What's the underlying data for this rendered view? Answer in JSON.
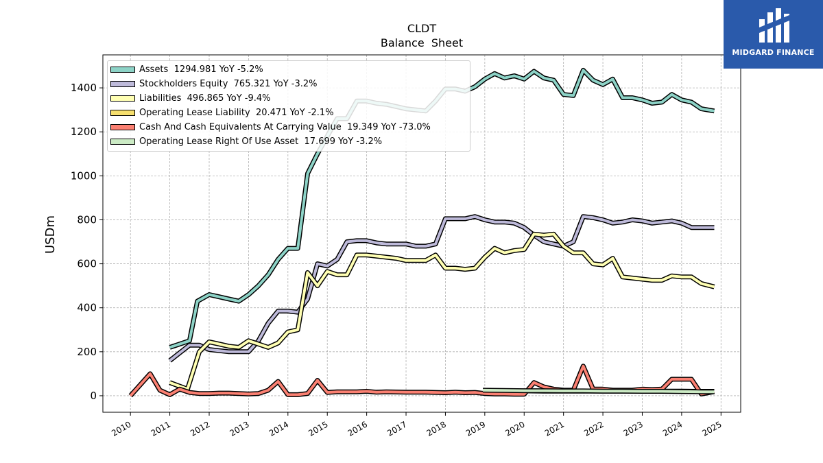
{
  "brand": {
    "name": "MIDGARD FINANCE",
    "bg_color": "#2a5aab"
  },
  "chart_data": {
    "type": "line",
    "title": "CLDT",
    "subtitle": "Balance  Sheet",
    "ylabel": "USDm",
    "xlabel": "",
    "xlim": [
      2009.3,
      2025.5
    ],
    "ylim": [
      -75,
      1550
    ],
    "x_ticks": [
      "2010",
      "2011",
      "2012",
      "2013",
      "2014",
      "2015",
      "2016",
      "2017",
      "2018",
      "2019",
      "2020",
      "2021",
      "2022",
      "2023",
      "2024",
      "2025"
    ],
    "y_ticks": [
      "0",
      "200",
      "400",
      "600",
      "800",
      "1000",
      "1200",
      "1400"
    ],
    "grid": true,
    "legend_position": "top-left",
    "series": [
      {
        "name": "Assets",
        "legend": "Assets  1294.981 YoY -5.2%",
        "color": "#8dd3c7",
        "x": [
          2011.0,
          2011.5,
          2011.7,
          2012.0,
          2012.25,
          2012.5,
          2012.75,
          2013.0,
          2013.25,
          2013.5,
          2013.75,
          2014.0,
          2014.25,
          2014.5,
          2014.75,
          2015.0,
          2015.25,
          2015.5,
          2015.75,
          2016.0,
          2016.25,
          2016.5,
          2016.75,
          2017.0,
          2017.25,
          2017.5,
          2017.75,
          2018.0,
          2018.25,
          2018.5,
          2018.75,
          2019.0,
          2019.25,
          2019.5,
          2019.75,
          2020.0,
          2020.25,
          2020.5,
          2020.75,
          2021.0,
          2021.25,
          2021.5,
          2021.75,
          2022.0,
          2022.25,
          2022.5,
          2022.75,
          2023.0,
          2023.25,
          2023.5,
          2023.75,
          2024.0,
          2024.25,
          2024.5,
          2024.83
        ],
        "y": [
          220,
          250,
          430,
          460,
          450,
          440,
          430,
          460,
          500,
          550,
          620,
          670,
          670,
          1010,
          1100,
          1180,
          1260,
          1260,
          1340,
          1340,
          1330,
          1325,
          1315,
          1305,
          1300,
          1295,
          1340,
          1395,
          1395,
          1385,
          1405,
          1440,
          1465,
          1445,
          1455,
          1440,
          1475,
          1445,
          1435,
          1370,
          1365,
          1480,
          1435,
          1415,
          1440,
          1355,
          1355,
          1345,
          1330,
          1335,
          1370,
          1345,
          1335,
          1305,
          1295
        ]
      },
      {
        "name": "Stockholders Equity",
        "legend": "Stockholders Equity  765.321 YoY -3.2%",
        "color": "#bebada",
        "x": [
          2011.0,
          2011.5,
          2011.75,
          2012.0,
          2012.25,
          2012.5,
          2012.75,
          2013.0,
          2013.25,
          2013.5,
          2013.75,
          2014.0,
          2014.25,
          2014.5,
          2014.75,
          2015.0,
          2015.25,
          2015.5,
          2015.75,
          2016.0,
          2016.25,
          2016.5,
          2016.75,
          2017.0,
          2017.25,
          2017.5,
          2017.75,
          2018.0,
          2018.25,
          2018.5,
          2018.75,
          2019.0,
          2019.25,
          2019.5,
          2019.75,
          2020.0,
          2020.25,
          2020.5,
          2020.75,
          2021.0,
          2021.25,
          2021.5,
          2021.75,
          2022.0,
          2022.25,
          2022.5,
          2022.75,
          2023.0,
          2023.25,
          2023.5,
          2023.75,
          2024.0,
          2024.25,
          2024.5,
          2024.83
        ],
        "y": [
          160,
          230,
          230,
          210,
          205,
          200,
          200,
          200,
          250,
          330,
          385,
          385,
          380,
          440,
          600,
          590,
          620,
          700,
          705,
          705,
          695,
          690,
          690,
          690,
          680,
          680,
          690,
          805,
          805,
          805,
          815,
          800,
          790,
          790,
          785,
          765,
          730,
          700,
          690,
          680,
          700,
          815,
          810,
          800,
          785,
          790,
          800,
          795,
          785,
          790,
          795,
          785,
          765,
          765,
          765
        ]
      },
      {
        "name": "Liabilities",
        "legend": "Liabilities  496.865 YoY -9.4%",
        "color": "#ffffb3",
        "x": [
          2011.0,
          2011.45,
          2011.75,
          2012.0,
          2012.25,
          2012.5,
          2012.75,
          2013.0,
          2013.25,
          2013.5,
          2013.75,
          2014.0,
          2014.25,
          2014.5,
          2014.75,
          2015.0,
          2015.25,
          2015.5,
          2015.75,
          2016.0,
          2016.25,
          2016.5,
          2016.75,
          2017.0,
          2017.25,
          2017.5,
          2017.75,
          2018.0,
          2018.25,
          2018.5,
          2018.75,
          2019.0,
          2019.25,
          2019.5,
          2019.75,
          2020.0,
          2020.25,
          2020.5,
          2020.75,
          2021.0,
          2021.25,
          2021.5,
          2021.75,
          2022.0,
          2022.25,
          2022.5,
          2022.75,
          2023.0,
          2023.25,
          2023.5,
          2023.75,
          2024.0,
          2024.25,
          2024.5,
          2024.83
        ],
        "y": [
          60,
          30,
          200,
          245,
          235,
          225,
          220,
          250,
          235,
          220,
          240,
          290,
          300,
          560,
          500,
          565,
          550,
          550,
          640,
          640,
          635,
          630,
          625,
          615,
          615,
          615,
          640,
          580,
          580,
          575,
          580,
          630,
          670,
          650,
          660,
          665,
          735,
          730,
          735,
          680,
          650,
          650,
          600,
          595,
          625,
          540,
          535,
          530,
          525,
          525,
          545,
          540,
          540,
          510,
          495
        ]
      },
      {
        "name": "Operating Lease Liability",
        "legend": "Operating Lease Liability  20.471 YoY -2.1%",
        "color": "#f6df6e",
        "x": [
          2019.0,
          2019.5,
          2020.0,
          2020.5,
          2021.0,
          2021.5,
          2022.0,
          2022.5,
          2023.0,
          2023.5,
          2024.0,
          2024.5,
          2024.83
        ],
        "y": [
          22,
          22,
          22,
          21,
          21,
          21,
          21,
          21,
          21,
          21,
          21,
          20,
          20
        ]
      },
      {
        "name": "Cash And Cash Equivalents At Carrying Value",
        "legend": "Cash And Cash Equivalents At Carrying Value  19.349 YoY -73.0%",
        "color": "#fb8072",
        "x": [
          2010.0,
          2010.5,
          2010.75,
          2011.0,
          2011.25,
          2011.5,
          2011.75,
          2012.0,
          2012.25,
          2012.5,
          2012.75,
          2013.0,
          2013.25,
          2013.5,
          2013.75,
          2014.0,
          2014.25,
          2014.5,
          2014.75,
          2015.0,
          2015.25,
          2015.5,
          2015.75,
          2016.0,
          2016.25,
          2016.5,
          2016.75,
          2017.0,
          2017.25,
          2017.5,
          2017.75,
          2018.0,
          2018.25,
          2018.5,
          2018.75,
          2019.0,
          2019.25,
          2019.5,
          2019.75,
          2020.0,
          2020.25,
          2020.5,
          2020.75,
          2021.0,
          2021.25,
          2021.5,
          2021.75,
          2022.0,
          2022.25,
          2022.5,
          2022.75,
          2023.0,
          2023.25,
          2023.5,
          2023.75,
          2024.0,
          2024.25,
          2024.5,
          2024.83
        ],
        "y": [
          0,
          100,
          25,
          5,
          30,
          15,
          10,
          10,
          12,
          12,
          10,
          8,
          10,
          25,
          65,
          5,
          5,
          10,
          70,
          15,
          18,
          18,
          18,
          20,
          16,
          18,
          17,
          16,
          16,
          16,
          15,
          14,
          16,
          14,
          15,
          10,
          8,
          8,
          7,
          7,
          60,
          40,
          30,
          25,
          25,
          135,
          30,
          30,
          25,
          25,
          25,
          30,
          28,
          30,
          75,
          75,
          75,
          8,
          19
        ]
      },
      {
        "name": "Operating Lease Right Of Use Asset",
        "legend": "Operating Lease Right Of Use Asset  17.699 YoY -3.2%",
        "color": "#ccebc5",
        "x": [
          2018.95,
          2019.5,
          2020.0,
          2020.5,
          2021.0,
          2021.5,
          2022.0,
          2022.5,
          2023.0,
          2023.5,
          2024.0,
          2024.5,
          2024.83
        ],
        "y": [
          25,
          24,
          23,
          23,
          22,
          22,
          21,
          21,
          20,
          20,
          19,
          18,
          18
        ]
      }
    ]
  }
}
